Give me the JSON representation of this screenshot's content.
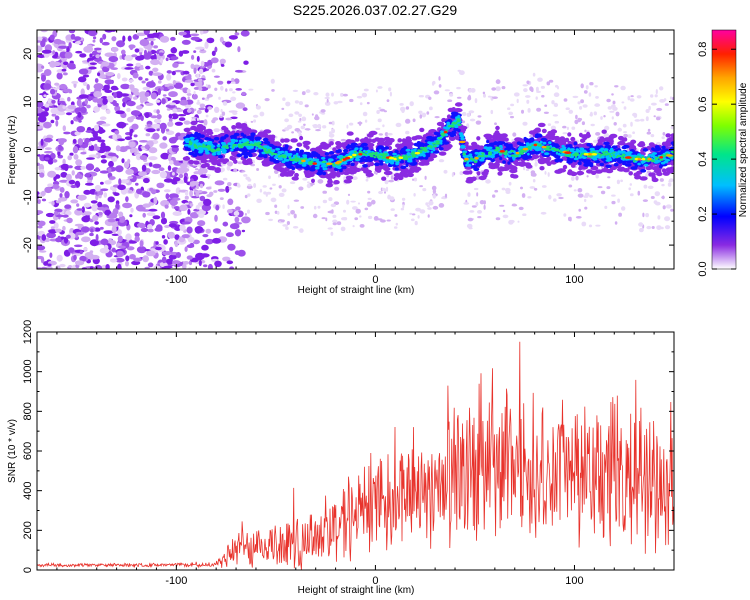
{
  "title": "S225.2026.037.02.27.G29",
  "chart_data": [
    {
      "type": "heatmap",
      "name": "spectrogram",
      "xlabel": "Height of straight line (km)",
      "ylabel": "Frequency (Hz)",
      "xlim": [
        -170,
        150
      ],
      "ylim": [
        -25,
        25
      ],
      "x_ticks": [
        -100,
        0,
        100
      ],
      "y_ticks": [
        -20,
        -10,
        0,
        10,
        20
      ],
      "noise_region_x": [
        -170,
        -85
      ],
      "ridge": {
        "x": [
          -100,
          -90,
          -80,
          -70,
          -60,
          -50,
          -40,
          -30,
          -20,
          -10,
          0,
          10,
          20,
          30,
          38,
          42,
          45,
          50,
          60,
          70,
          80,
          90,
          100,
          110,
          120,
          130,
          140,
          150
        ],
        "y": [
          2,
          1,
          0,
          1,
          1,
          -1,
          -2,
          -3,
          -3,
          -1,
          -1,
          -2,
          -1,
          1,
          5,
          6,
          -2,
          -2,
          0,
          -1,
          1,
          0,
          -1,
          -1,
          -1,
          -2,
          -2,
          -1
        ]
      },
      "colorbar": {
        "label": "Normalized spectral amplitude",
        "ticks": [
          0.0,
          0.2,
          0.4,
          0.6,
          0.8
        ],
        "tick_labels": [
          "0.0",
          "0.2",
          "0.4",
          "0.6",
          "0.8"
        ],
        "range": [
          0,
          0.87
        ]
      }
    },
    {
      "type": "line",
      "name": "snr",
      "xlabel": "Height of straight line (km)",
      "ylabel": "SNR (10 * v/v)",
      "xlim": [
        -170,
        150
      ],
      "ylim": [
        0,
        1200
      ],
      "x_ticks": [
        -100,
        0,
        100
      ],
      "y_ticks": [
        0,
        200,
        400,
        600,
        800,
        1000,
        1200
      ],
      "color": "#e8322b",
      "envelope": {
        "x": [
          -170,
          -100,
          -80,
          -75,
          -70,
          -60,
          -50,
          -40,
          -30,
          -20,
          -10,
          0,
          10,
          20,
          30,
          40,
          50,
          60,
          70,
          80,
          90,
          100,
          110,
          120,
          130,
          140,
          150
        ],
        "mean": [
          25,
          25,
          30,
          60,
          110,
          120,
          130,
          150,
          180,
          230,
          270,
          330,
          380,
          420,
          440,
          460,
          500,
          520,
          510,
          500,
          480,
          480,
          460,
          460,
          470,
          480,
          420
        ],
        "amp": [
          10,
          10,
          20,
          60,
          110,
          130,
          150,
          180,
          210,
          250,
          290,
          320,
          330,
          340,
          360,
          400,
          420,
          440,
          420,
          420,
          400,
          420,
          420,
          440,
          420,
          400,
          360
        ]
      }
    }
  ]
}
